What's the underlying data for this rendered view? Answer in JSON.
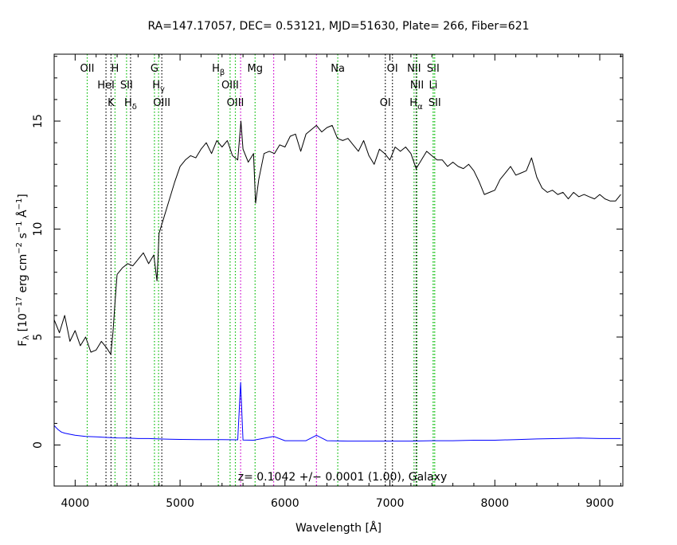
{
  "chart_data": {
    "type": "line",
    "title": "RA=147.17057, DEC= 0.53121, MJD=51630, Plate= 266, Fiber=621",
    "xlabel": "Wavelength [Å]",
    "ylabel": {
      "parts": [
        "F",
        "λ",
        " [10",
        "−17",
        " erg cm",
        "−2",
        " s",
        "−1",
        " Å",
        "−1",
        "]"
      ],
      "text": "Fλ [10^-17 erg cm^-2 s^-1 Å^-1]"
    },
    "annotation": "z= 0.1042 +/− 0.0001 (1.00), Galaxy",
    "xlim": [
      3800,
      9220
    ],
    "ylim": [
      -1.9,
      18.1
    ],
    "xticks": [
      4000,
      5000,
      6000,
      7000,
      8000,
      9000
    ],
    "xtick_labels": [
      "4000",
      "5000",
      "6000",
      "7000",
      "8000",
      "9000"
    ],
    "yticks": [
      0,
      5,
      10,
      15
    ],
    "ytick_labels": [
      "0",
      "5",
      "10",
      "15"
    ],
    "grid": false,
    "colors": {
      "flux": "#000000",
      "error": "#0000ff",
      "emission": "#00bb00",
      "absorption": "#000000",
      "sky": "#cc00cc"
    },
    "line_markers": [
      {
        "label": "OII",
        "wavelength": 4115,
        "kind": "emission",
        "row": 1
      },
      {
        "label": "H",
        "wavelength": 4380,
        "kind": "emission",
        "row": 1
      },
      {
        "label": "HeI",
        "wavelength": 4294,
        "kind": "absorption",
        "row": 2
      },
      {
        "label": "K",
        "wavelength": 4342,
        "kind": "absorption",
        "row": 3
      },
      {
        "label": "SII",
        "wavelength": 4490,
        "kind": "emission",
        "row": 2
      },
      {
        "label": "H",
        "sub": "δ",
        "wavelength": 4528,
        "kind": "absorption",
        "row": 3
      },
      {
        "label": "G",
        "wavelength": 4756,
        "kind": "emission",
        "row": 1
      },
      {
        "label": "H",
        "sub": "γ",
        "wavelength": 4795,
        "kind": "emission",
        "row": 2
      },
      {
        "label": "OIII",
        "wavelength": 4826,
        "kind": "absorption",
        "row": 3
      },
      {
        "label": "H",
        "sub": "β",
        "wavelength": 5365,
        "kind": "emission",
        "row": 1
      },
      {
        "label": "OIII",
        "wavelength": 5477,
        "kind": "emission",
        "row": 2
      },
      {
        "label": "OIII",
        "wavelength": 5527,
        "kind": "emission",
        "row": 3
      },
      {
        "label": "Mg",
        "wavelength": 5715,
        "kind": "emission",
        "row": 1
      },
      {
        "label": "Na",
        "wavelength": 6503,
        "kind": "emission",
        "row": 1
      },
      {
        "label": "OI",
        "wavelength": 6956,
        "kind": "absorption",
        "row": 3
      },
      {
        "label": "OI",
        "wavelength": 7024,
        "kind": "absorption",
        "row": 1
      },
      {
        "label": "NII",
        "wavelength": 7230,
        "kind": "emission",
        "row": 1
      },
      {
        "label": "NII",
        "wavelength": 7258,
        "kind": "emission",
        "row": 2
      },
      {
        "label": "H",
        "sub": "α",
        "wavelength": 7250,
        "kind": "absorption",
        "row": 3
      },
      {
        "label": "SII",
        "wavelength": 7412,
        "kind": "emission",
        "row": 1
      },
      {
        "label": "Li",
        "wavelength": 7413,
        "kind": "emission",
        "row": 2
      },
      {
        "label": "SII",
        "wavelength": 7427,
        "kind": "emission",
        "row": 3
      }
    ],
    "sky_lines": [
      5577,
      5892,
      6300
    ],
    "series": [
      {
        "name": "",
        "role": "flux",
        "x": [
          3800,
          3850,
          3900,
          3950,
          4000,
          4050,
          4100,
          4150,
          4200,
          4250,
          4300,
          4340,
          4360,
          4380,
          4400,
          4450,
          4500,
          4550,
          4600,
          4650,
          4700,
          4750,
          4780,
          4800,
          4850,
          4900,
          4950,
          5000,
          5050,
          5100,
          5150,
          5200,
          5250,
          5300,
          5350,
          5400,
          5450,
          5500,
          5550,
          5580,
          5600,
          5650,
          5700,
          5720,
          5750,
          5800,
          5850,
          5900,
          5950,
          6000,
          6050,
          6100,
          6150,
          6200,
          6250,
          6300,
          6350,
          6400,
          6450,
          6500,
          6550,
          6600,
          6650,
          6700,
          6750,
          6800,
          6850,
          6900,
          6950,
          7000,
          7050,
          7100,
          7150,
          7200,
          7250,
          7300,
          7350,
          7400,
          7450,
          7500,
          7550,
          7600,
          7650,
          7700,
          7750,
          7800,
          7850,
          7900,
          7950,
          8000,
          8050,
          8100,
          8150,
          8200,
          8250,
          8300,
          8350,
          8400,
          8450,
          8500,
          8550,
          8600,
          8650,
          8700,
          8750,
          8800,
          8850,
          8900,
          8950,
          9000,
          9050,
          9100,
          9150,
          9200
        ],
        "y": [
          5.8,
          5.2,
          6.0,
          4.8,
          5.3,
          4.6,
          5.0,
          4.3,
          4.4,
          4.8,
          4.5,
          4.2,
          5.2,
          6.6,
          7.9,
          8.2,
          8.4,
          8.3,
          8.6,
          8.9,
          8.4,
          8.8,
          7.6,
          9.8,
          10.6,
          11.4,
          12.2,
          12.9,
          13.2,
          13.4,
          13.3,
          13.7,
          14.0,
          13.5,
          14.1,
          13.8,
          14.1,
          13.4,
          13.2,
          15.0,
          13.7,
          13.1,
          13.5,
          11.2,
          12.3,
          13.5,
          13.6,
          13.5,
          13.9,
          13.8,
          14.3,
          14.4,
          13.6,
          14.4,
          14.6,
          14.8,
          14.5,
          14.7,
          14.8,
          14.2,
          14.1,
          14.2,
          13.9,
          13.6,
          14.1,
          13.4,
          13.0,
          13.7,
          13.5,
          13.2,
          13.8,
          13.6,
          13.8,
          13.5,
          12.8,
          13.2,
          13.6,
          13.4,
          13.2,
          13.2,
          12.9,
          13.1,
          12.9,
          12.8,
          13.0,
          12.7,
          12.2,
          11.6,
          11.7,
          11.8,
          12.3,
          12.6,
          12.9,
          12.5,
          12.6,
          12.7,
          13.3,
          12.4,
          11.9,
          11.7,
          11.8,
          11.6,
          11.7,
          11.4,
          11.7,
          11.5,
          11.6,
          11.5,
          11.4,
          11.6,
          11.4,
          11.3,
          11.3,
          11.6
        ]
      },
      {
        "name": "",
        "role": "error",
        "x": [
          3800,
          3820,
          3840,
          3870,
          3900,
          3950,
          4000,
          4100,
          4200,
          4300,
          4400,
          4500,
          4600,
          4700,
          4800,
          4900,
          5000,
          5200,
          5400,
          5550,
          5577,
          5600,
          5700,
          5892,
          6000,
          6200,
          6300,
          6400,
          6600,
          6800,
          7000,
          7200,
          7400,
          7600,
          7800,
          8000,
          8200,
          8400,
          8600,
          8800,
          9000,
          9200
        ],
        "y": [
          0.9,
          0.8,
          0.7,
          0.6,
          0.55,
          0.5,
          0.45,
          0.4,
          0.38,
          0.35,
          0.33,
          0.32,
          0.3,
          0.3,
          0.28,
          0.27,
          0.26,
          0.25,
          0.25,
          0.24,
          2.9,
          0.23,
          0.22,
          0.4,
          0.2,
          0.2,
          0.45,
          0.2,
          0.18,
          0.18,
          0.18,
          0.18,
          0.2,
          0.2,
          0.22,
          0.22,
          0.25,
          0.28,
          0.3,
          0.32,
          0.3,
          0.3
        ]
      }
    ]
  }
}
